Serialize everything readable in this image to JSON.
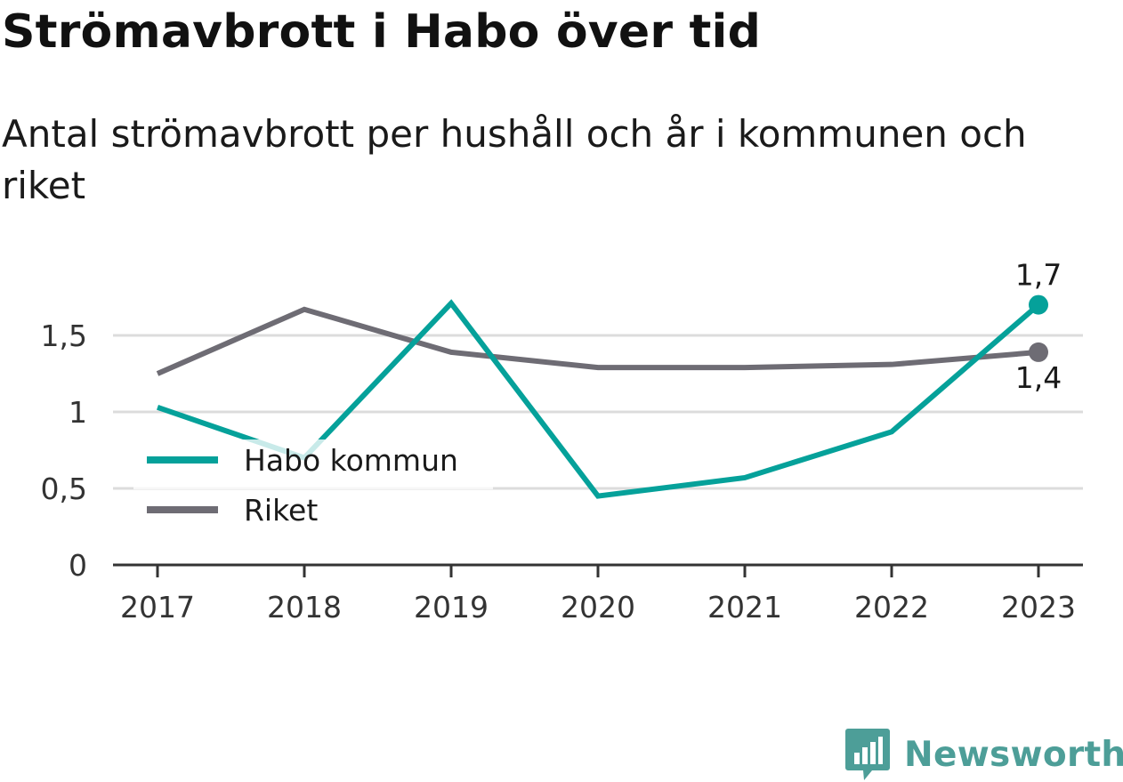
{
  "page": {
    "title": "Strömavbrott i Habo över tid",
    "subtitle": "Antal strömavbrott per hushåll och år i kommunen och riket",
    "brand": "Newsworthy"
  },
  "colors": {
    "habo": "#05a19a",
    "riket": "#6e6c74",
    "gridline": "#dcdcdc",
    "axis": "#333333",
    "brand": "#4d9e98"
  },
  "icons": {
    "brand": "bar-chart-icon"
  },
  "chart_data": {
    "type": "line",
    "title": "Strömavbrott i Habo över tid",
    "subtitle": "Antal strömavbrott per hushåll och år i kommunen och riket",
    "xlabel": "",
    "ylabel": "",
    "x": [
      2017,
      2018,
      2019,
      2020,
      2021,
      2022,
      2023
    ],
    "x_tick_labels": [
      "2017",
      "2018",
      "2019",
      "2020",
      "2021",
      "2022",
      "2023"
    ],
    "ylim": [
      0,
      1.8
    ],
    "y_ticks": [
      0,
      0.5,
      1,
      1.5
    ],
    "y_tick_labels": [
      "0",
      "0,5",
      "1",
      "1,5"
    ],
    "grid": "horizontal",
    "legend_position": "bottom-left",
    "series": [
      {
        "name": "Habo kommun",
        "color": "#05a19a",
        "values": [
          1.03,
          0.7,
          1.71,
          0.45,
          0.57,
          0.87,
          1.7
        ],
        "end_label": "1,7",
        "end_label_position": "above"
      },
      {
        "name": "Riket",
        "color": "#6e6c74",
        "values": [
          1.25,
          1.67,
          1.39,
          1.29,
          1.29,
          1.31,
          1.39
        ],
        "end_label": "1,4",
        "end_label_position": "below"
      }
    ]
  }
}
